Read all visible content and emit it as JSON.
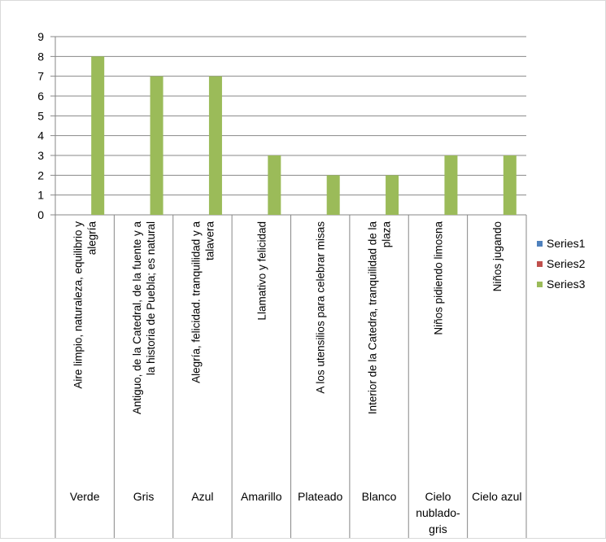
{
  "chart_data": {
    "type": "bar",
    "categories": [
      {
        "desc": [
          "Aire limpio, naturaleza, equilibrio y",
          "alegría"
        ],
        "color": [
          "Verde"
        ]
      },
      {
        "desc": [
          "Antiguo, de la Catedral, de la fuente y a",
          "la historia de Puebla; es natural"
        ],
        "color": [
          "Gris"
        ]
      },
      {
        "desc": [
          "Alegría, felicidad. tranquilidad y a",
          "talavera"
        ],
        "color": [
          "Azul"
        ]
      },
      {
        "desc": [
          "Llamativo y felicidad"
        ],
        "color": [
          "Amarillo"
        ]
      },
      {
        "desc": [
          "A los utensilios para celebrar misas"
        ],
        "color": [
          "Plateado"
        ]
      },
      {
        "desc": [
          "Interior de la Catedra, tranquilidad de la",
          "plaza"
        ],
        "color": [
          "Blanco"
        ]
      },
      {
        "desc": [
          "Niños pidiendo limosna"
        ],
        "color": [
          "Cielo",
          "nublado-",
          "gris"
        ]
      },
      {
        "desc": [
          "Niños jugando"
        ],
        "color": [
          "Cielo azul"
        ]
      }
    ],
    "series": [
      {
        "name": "Series1",
        "color": "#4f81bd",
        "values": [
          0,
          0,
          0,
          0,
          0,
          0,
          0,
          0
        ]
      },
      {
        "name": "Series2",
        "color": "#c0504d",
        "values": [
          0,
          0,
          0,
          0,
          0,
          0,
          0,
          0
        ]
      },
      {
        "name": "Series3",
        "color": "#9bbb59",
        "values": [
          8,
          7,
          7,
          3,
          2,
          2,
          3,
          3
        ]
      }
    ],
    "ylim": [
      0,
      9
    ],
    "yticks": [
      "0",
      "1",
      "2",
      "3",
      "4",
      "5",
      "6",
      "7",
      "8",
      "9"
    ],
    "grid": true,
    "legend": "right"
  }
}
